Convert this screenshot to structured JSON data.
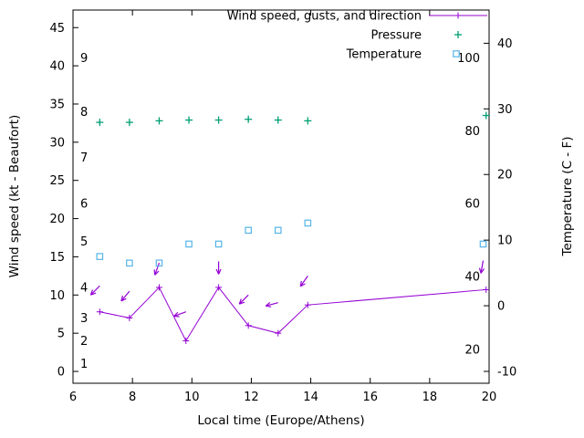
{
  "chart_data": {
    "type": "line",
    "title": "",
    "xlabel": "Local time (Europe/Athens)",
    "ylabel_left": "Wind speed (kt - Beaufort)",
    "ylabel_right": "Temperature (C - F)",
    "x_range": [
      6,
      20
    ],
    "y_left_range": [
      -1.55,
      47.3
    ],
    "y_right_range": [
      -11.81,
      45.06
    ],
    "x_ticks": [
      6,
      8,
      10,
      12,
      14,
      16,
      18,
      20
    ],
    "y_left_ticks": [
      0,
      5,
      10,
      15,
      20,
      25,
      30,
      35,
      40,
      45
    ],
    "y_right_ticks": [
      -10,
      0,
      10,
      20,
      30,
      40
    ],
    "beaufort_labels": [
      {
        "text": "1",
        "kt": 1
      },
      {
        "text": "2",
        "kt": 4
      },
      {
        "text": "3",
        "kt": 7
      },
      {
        "text": "4",
        "kt": 11
      },
      {
        "text": "5",
        "kt": 17
      },
      {
        "text": "6",
        "kt": 22
      },
      {
        "text": "7",
        "kt": 28
      },
      {
        "text": "8",
        "kt": 34
      },
      {
        "text": "9",
        "kt": 41
      }
    ],
    "fahrenheit_labels": [
      {
        "text": "20",
        "f": 20
      },
      {
        "text": "40",
        "f": 40
      },
      {
        "text": "60",
        "f": 60
      },
      {
        "text": "80",
        "f": 80
      },
      {
        "text": "100",
        "f": 100
      }
    ],
    "legend": [
      {
        "label": "Wind speed, gusts, and direction",
        "series": "wind",
        "marker": "plus-line",
        "color": "#9400d3"
      },
      {
        "label": "Pressure",
        "series": "pressure",
        "marker": "plus",
        "color": "#009e73"
      },
      {
        "label": "Temperature",
        "series": "temperature",
        "marker": "square",
        "color": "#56b4e9"
      }
    ],
    "series": {
      "wind_speed": {
        "name": "Wind speed",
        "color": "#9400d3",
        "x": [
          6.9,
          7.9,
          8.9,
          9.8,
          10.9,
          11.9,
          12.9,
          13.9,
          19.9
        ],
        "kt": [
          7.8,
          7.0,
          11.0,
          4.0,
          11.0,
          6.0,
          5.0,
          8.7,
          10.7
        ]
      },
      "wind_gusts": {
        "name": "Wind gusts and direction",
        "color": "#9400d3",
        "points": [
          {
            "x": 6.9,
            "kt": 11.2,
            "angle_deg": 135
          },
          {
            "x": 7.9,
            "kt": 10.5,
            "angle_deg": 130
          },
          {
            "x": 8.9,
            "kt": 14.2,
            "angle_deg": 110
          },
          {
            "x": 9.8,
            "kt": 7.8,
            "angle_deg": 160
          },
          {
            "x": 10.9,
            "kt": 14.4,
            "angle_deg": 90
          },
          {
            "x": 11.9,
            "kt": 10.0,
            "angle_deg": 135
          },
          {
            "x": 12.9,
            "kt": 9.0,
            "angle_deg": 165
          },
          {
            "x": 13.9,
            "kt": 12.5,
            "angle_deg": 125
          },
          {
            "x": 19.8,
            "kt": 14.5,
            "angle_deg": 100
          }
        ]
      },
      "pressure": {
        "name": "Pressure",
        "color": "#009e73",
        "x": [
          6.9,
          7.9,
          8.9,
          9.9,
          10.9,
          11.9,
          12.9,
          13.9,
          19.9
        ],
        "y_left_scale": [
          32.6,
          32.6,
          32.8,
          32.9,
          32.9,
          33.0,
          32.9,
          32.8,
          33.5
        ]
      },
      "temperature": {
        "name": "Temperature",
        "color": "#56b4e9",
        "x": [
          6.9,
          7.9,
          8.9,
          9.9,
          10.9,
          11.9,
          12.9,
          13.9,
          19.8
        ],
        "celsius": [
          7.5,
          6.5,
          6.5,
          9.4,
          9.4,
          11.5,
          11.5,
          12.6,
          9.4
        ]
      }
    }
  }
}
